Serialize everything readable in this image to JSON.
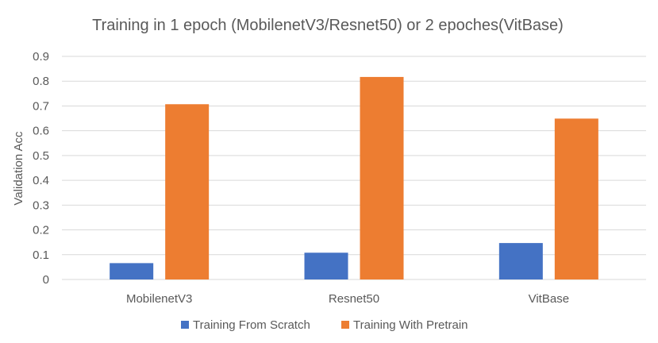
{
  "chart_data": {
    "type": "bar",
    "title": "Training in 1 epoch (MobilenetV3/Resnet50) or 2 epoches(VitBase)",
    "xlabel": "",
    "ylabel": "Validation Acc",
    "ylim": [
      0,
      0.9
    ],
    "yticks": [
      "0",
      "0.1",
      "0.2",
      "0.3",
      "0.4",
      "0.5",
      "0.6",
      "0.7",
      "0.8",
      "0.9"
    ],
    "categories": [
      "MobilenetV3",
      "Resnet50",
      "VitBase"
    ],
    "series": [
      {
        "name": "Training From Scratch",
        "color": "#4472c4",
        "values": [
          0.066,
          0.108,
          0.147
        ]
      },
      {
        "name": "Training With Pretrain",
        "color": "#ed7d31",
        "values": [
          0.707,
          0.817,
          0.649
        ]
      }
    ],
    "grid": true,
    "legend_position": "bottom"
  }
}
